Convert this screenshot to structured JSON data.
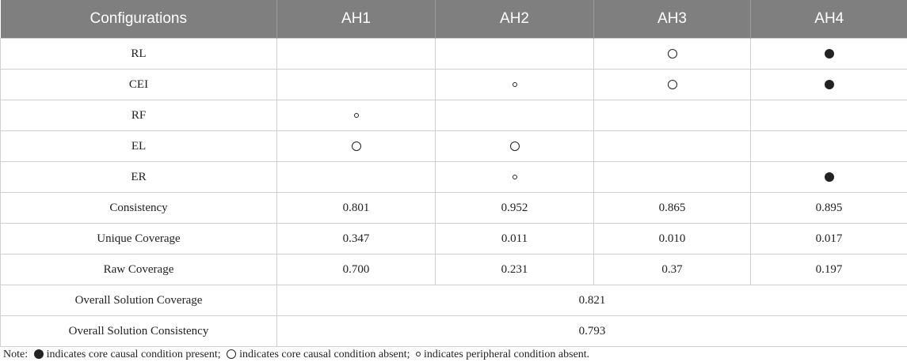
{
  "columns": [
    "Configurations",
    "AH1",
    "AH2",
    "AH3",
    "AH4"
  ],
  "rows": [
    {
      "label": "RL",
      "cells": [
        "",
        "",
        "core-absent",
        "core-present"
      ]
    },
    {
      "label": "CEI",
      "cells": [
        "",
        "peripheral-absent",
        "core-absent",
        "core-present"
      ]
    },
    {
      "label": "RF",
      "cells": [
        "peripheral-absent",
        "",
        "",
        ""
      ]
    },
    {
      "label": "EL",
      "cells": [
        "core-absent",
        "core-absent",
        "",
        ""
      ]
    },
    {
      "label": "ER",
      "cells": [
        "",
        "peripheral-absent",
        "",
        "core-present"
      ]
    },
    {
      "label": "Consistency",
      "cells": [
        "0.801",
        "0.952",
        "0.865",
        "0.895"
      ]
    },
    {
      "label": "Unique Coverage",
      "cells": [
        "0.347",
        "0.011",
        "0.010",
        "0.017"
      ]
    },
    {
      "label": "Raw Coverage",
      "cells": [
        "0.700",
        "0.231",
        "0.37",
        "0.197"
      ]
    }
  ],
  "summary": [
    {
      "label": "Overall Solution Coverage",
      "value": "0.821"
    },
    {
      "label": "Overall Solution Consistency",
      "value": "0.793"
    }
  ],
  "note": {
    "prefix": "Note:",
    "part1": "indicates core causal condition present;",
    "part2": "indicates core causal condition absent;",
    "part3": "indicates peripheral condition absent."
  },
  "colors": {
    "header_bg": "#7f7f7f",
    "header_text": "#ffffff",
    "border": "#cfcfcf",
    "text": "#222222"
  }
}
